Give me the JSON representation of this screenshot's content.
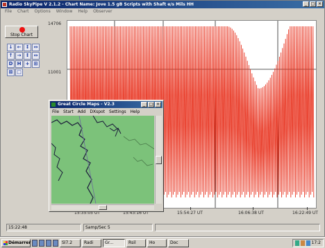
{
  "app": {
    "title": "Radio SkyPipe V 2.1.2 - Chart Name: Jove 1.5 gB Scripts with Shaft e/s Mils HH",
    "menu": [
      "File",
      "Chart",
      "Options",
      "Window",
      "Help",
      "Observer"
    ]
  },
  "toolbar": {
    "stop_label": "Stop Chart",
    "tools": [
      "↓",
      "←",
      "↕",
      "↔",
      "↑",
      "→",
      "↕",
      "↔",
      "D",
      "H",
      "+",
      "⊞",
      "⊠",
      "□"
    ]
  },
  "chart": {
    "y_labels": [
      "14706",
      "11001"
    ],
    "x_labels": [
      "15:35:05 UT",
      "15:43:16 UT",
      "15:54:27 UT",
      "16:06:38 UT",
      "16:22:49 UT"
    ],
    "trace_color": "#e8321e"
  },
  "status": {
    "time": "15:22:48",
    "sample_rate": "Samp/Sec 5"
  },
  "gcm": {
    "title": "Great Circle Maps - V2.3",
    "menu": [
      "File",
      "Start",
      "Add",
      "DXspot",
      "Settings",
      "Help"
    ],
    "map_color": "#7cc27a"
  },
  "taskbar": {
    "start_label": "Démarrer",
    "tasks": [
      "Sl7.2",
      "Radi",
      "Gr...",
      "Rsil",
      "Ho",
      "Doc"
    ],
    "clock": "17:2"
  }
}
